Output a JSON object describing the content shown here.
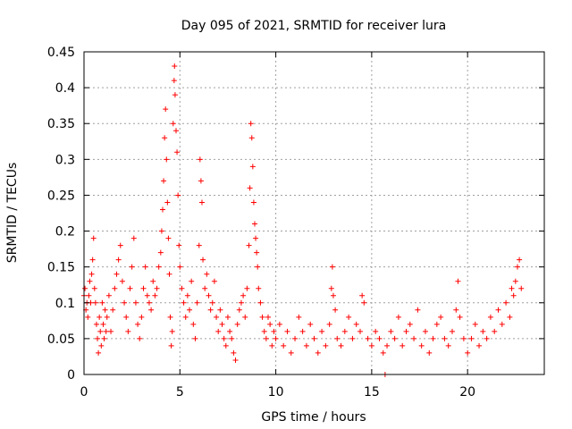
{
  "chart_data": {
    "type": "scatter",
    "title": "Day 095 of 2021, SRMTID for receiver lura",
    "xlabel": "GPS time / hours",
    "ylabel": "SRMTID / TECUs",
    "xlim": [
      0,
      24
    ],
    "ylim": [
      0,
      0.45
    ],
    "xticks": [
      0,
      5,
      10,
      15,
      20
    ],
    "xtick_labels": [
      "0",
      "5",
      "10",
      "15",
      "20"
    ],
    "yticks": [
      0,
      0.05,
      0.1,
      0.15,
      0.2,
      0.25,
      0.3,
      0.35,
      0.4,
      0.45
    ],
    "ytick_labels": [
      "0",
      "0.05",
      "0.1",
      "0.15",
      "0.2",
      "0.25",
      "0.3",
      "0.35",
      "0.4",
      "0.45"
    ],
    "grid": true,
    "marker": "plus",
    "color": "#ff0000",
    "series": [
      {
        "name": "SRMTID",
        "points": [
          [
            0.0,
            0.11
          ],
          [
            0.05,
            0.12
          ],
          [
            0.1,
            0.09
          ],
          [
            0.15,
            0.1
          ],
          [
            0.2,
            0.08
          ],
          [
            0.25,
            0.11
          ],
          [
            0.3,
            0.13
          ],
          [
            0.35,
            0.1
          ],
          [
            0.4,
            0.14
          ],
          [
            0.45,
            0.16
          ],
          [
            0.5,
            0.19
          ],
          [
            0.55,
            0.12
          ],
          [
            0.6,
            0.1
          ],
          [
            0.65,
            0.07
          ],
          [
            0.7,
            0.05
          ],
          [
            0.75,
            0.03
          ],
          [
            0.8,
            0.08
          ],
          [
            0.85,
            0.06
          ],
          [
            0.9,
            0.04
          ],
          [
            0.95,
            0.1
          ],
          [
            1.0,
            0.07
          ],
          [
            1.05,
            0.05
          ],
          [
            1.1,
            0.09
          ],
          [
            1.15,
            0.06
          ],
          [
            1.2,
            0.08
          ],
          [
            1.3,
            0.11
          ],
          [
            1.4,
            0.06
          ],
          [
            1.5,
            0.09
          ],
          [
            1.6,
            0.12
          ],
          [
            1.7,
            0.14
          ],
          [
            1.8,
            0.16
          ],
          [
            1.9,
            0.18
          ],
          [
            2.0,
            0.13
          ],
          [
            2.1,
            0.1
          ],
          [
            2.2,
            0.08
          ],
          [
            2.3,
            0.06
          ],
          [
            2.4,
            0.12
          ],
          [
            2.5,
            0.15
          ],
          [
            2.6,
            0.19
          ],
          [
            2.7,
            0.1
          ],
          [
            2.8,
            0.07
          ],
          [
            2.9,
            0.05
          ],
          [
            3.0,
            0.08
          ],
          [
            3.1,
            0.12
          ],
          [
            3.2,
            0.15
          ],
          [
            3.3,
            0.11
          ],
          [
            3.4,
            0.1
          ],
          [
            3.5,
            0.09
          ],
          [
            3.6,
            0.13
          ],
          [
            3.7,
            0.11
          ],
          [
            3.8,
            0.12
          ],
          [
            3.9,
            0.15
          ],
          [
            4.0,
            0.17
          ],
          [
            4.05,
            0.2
          ],
          [
            4.1,
            0.23
          ],
          [
            4.15,
            0.27
          ],
          [
            4.2,
            0.33
          ],
          [
            4.25,
            0.37
          ],
          [
            4.3,
            0.3
          ],
          [
            4.35,
            0.24
          ],
          [
            4.4,
            0.19
          ],
          [
            4.45,
            0.14
          ],
          [
            4.5,
            0.08
          ],
          [
            4.55,
            0.04
          ],
          [
            4.6,
            0.06
          ],
          [
            4.65,
            0.35
          ],
          [
            4.7,
            0.41
          ],
          [
            4.72,
            0.43
          ],
          [
            4.75,
            0.39
          ],
          [
            4.8,
            0.34
          ],
          [
            4.85,
            0.31
          ],
          [
            4.9,
            0.25
          ],
          [
            4.95,
            0.18
          ],
          [
            5.0,
            0.15
          ],
          [
            5.1,
            0.12
          ],
          [
            5.2,
            0.1
          ],
          [
            5.3,
            0.08
          ],
          [
            5.4,
            0.11
          ],
          [
            5.5,
            0.09
          ],
          [
            5.6,
            0.13
          ],
          [
            5.7,
            0.07
          ],
          [
            5.8,
            0.05
          ],
          [
            5.9,
            0.1
          ],
          [
            6.0,
            0.18
          ],
          [
            6.05,
            0.3
          ],
          [
            6.1,
            0.27
          ],
          [
            6.15,
            0.24
          ],
          [
            6.2,
            0.16
          ],
          [
            6.3,
            0.12
          ],
          [
            6.4,
            0.14
          ],
          [
            6.5,
            0.11
          ],
          [
            6.6,
            0.09
          ],
          [
            6.7,
            0.1
          ],
          [
            6.8,
            0.13
          ],
          [
            6.9,
            0.08
          ],
          [
            7.0,
            0.06
          ],
          [
            7.1,
            0.09
          ],
          [
            7.2,
            0.07
          ],
          [
            7.3,
            0.05
          ],
          [
            7.4,
            0.04
          ],
          [
            7.5,
            0.08
          ],
          [
            7.6,
            0.06
          ],
          [
            7.7,
            0.05
          ],
          [
            7.8,
            0.03
          ],
          [
            7.9,
            0.02
          ],
          [
            8.0,
            0.07
          ],
          [
            8.1,
            0.09
          ],
          [
            8.2,
            0.1
          ],
          [
            8.3,
            0.11
          ],
          [
            8.4,
            0.08
          ],
          [
            8.5,
            0.12
          ],
          [
            8.6,
            0.18
          ],
          [
            8.65,
            0.26
          ],
          [
            8.7,
            0.35
          ],
          [
            8.75,
            0.33
          ],
          [
            8.8,
            0.29
          ],
          [
            8.85,
            0.24
          ],
          [
            8.9,
            0.21
          ],
          [
            8.95,
            0.19
          ],
          [
            9.0,
            0.17
          ],
          [
            9.05,
            0.15
          ],
          [
            9.1,
            0.12
          ],
          [
            9.2,
            0.1
          ],
          [
            9.3,
            0.08
          ],
          [
            9.4,
            0.06
          ],
          [
            9.5,
            0.05
          ],
          [
            9.6,
            0.08
          ],
          [
            9.7,
            0.07
          ],
          [
            9.8,
            0.04
          ],
          [
            9.9,
            0.06
          ],
          [
            10.0,
            0.05
          ],
          [
            10.2,
            0.07
          ],
          [
            10.4,
            0.04
          ],
          [
            10.6,
            0.06
          ],
          [
            10.8,
            0.03
          ],
          [
            11.0,
            0.05
          ],
          [
            11.2,
            0.08
          ],
          [
            11.4,
            0.06
          ],
          [
            11.6,
            0.04
          ],
          [
            11.8,
            0.07
          ],
          [
            12.0,
            0.05
          ],
          [
            12.2,
            0.03
          ],
          [
            12.4,
            0.06
          ],
          [
            12.6,
            0.04
          ],
          [
            12.8,
            0.07
          ],
          [
            12.9,
            0.12
          ],
          [
            12.95,
            0.15
          ],
          [
            13.0,
            0.11
          ],
          [
            13.1,
            0.09
          ],
          [
            13.2,
            0.05
          ],
          [
            13.4,
            0.04
          ],
          [
            13.6,
            0.06
          ],
          [
            13.8,
            0.08
          ],
          [
            14.0,
            0.05
          ],
          [
            14.2,
            0.07
          ],
          [
            14.4,
            0.06
          ],
          [
            14.5,
            0.11
          ],
          [
            14.6,
            0.1
          ],
          [
            14.8,
            0.05
          ],
          [
            15.0,
            0.04
          ],
          [
            15.2,
            0.06
          ],
          [
            15.4,
            0.05
          ],
          [
            15.6,
            0.03
          ],
          [
            15.7,
            0.0
          ],
          [
            15.8,
            0.04
          ],
          [
            16.0,
            0.06
          ],
          [
            16.2,
            0.05
          ],
          [
            16.4,
            0.08
          ],
          [
            16.6,
            0.04
          ],
          [
            16.8,
            0.06
          ],
          [
            17.0,
            0.07
          ],
          [
            17.2,
            0.05
          ],
          [
            17.4,
            0.09
          ],
          [
            17.6,
            0.04
          ],
          [
            17.8,
            0.06
          ],
          [
            18.0,
            0.03
          ],
          [
            18.2,
            0.05
          ],
          [
            18.4,
            0.07
          ],
          [
            18.6,
            0.08
          ],
          [
            18.8,
            0.05
          ],
          [
            19.0,
            0.04
          ],
          [
            19.2,
            0.06
          ],
          [
            19.4,
            0.09
          ],
          [
            19.5,
            0.13
          ],
          [
            19.6,
            0.08
          ],
          [
            19.8,
            0.05
          ],
          [
            20.0,
            0.03
          ],
          [
            20.2,
            0.05
          ],
          [
            20.4,
            0.07
          ],
          [
            20.6,
            0.04
          ],
          [
            20.8,
            0.06
          ],
          [
            21.0,
            0.05
          ],
          [
            21.2,
            0.08
          ],
          [
            21.4,
            0.06
          ],
          [
            21.6,
            0.09
          ],
          [
            21.8,
            0.07
          ],
          [
            22.0,
            0.1
          ],
          [
            22.2,
            0.08
          ],
          [
            22.3,
            0.12
          ],
          [
            22.4,
            0.11
          ],
          [
            22.5,
            0.13
          ],
          [
            22.6,
            0.15
          ],
          [
            22.7,
            0.16
          ],
          [
            22.8,
            0.12
          ]
        ]
      }
    ]
  }
}
